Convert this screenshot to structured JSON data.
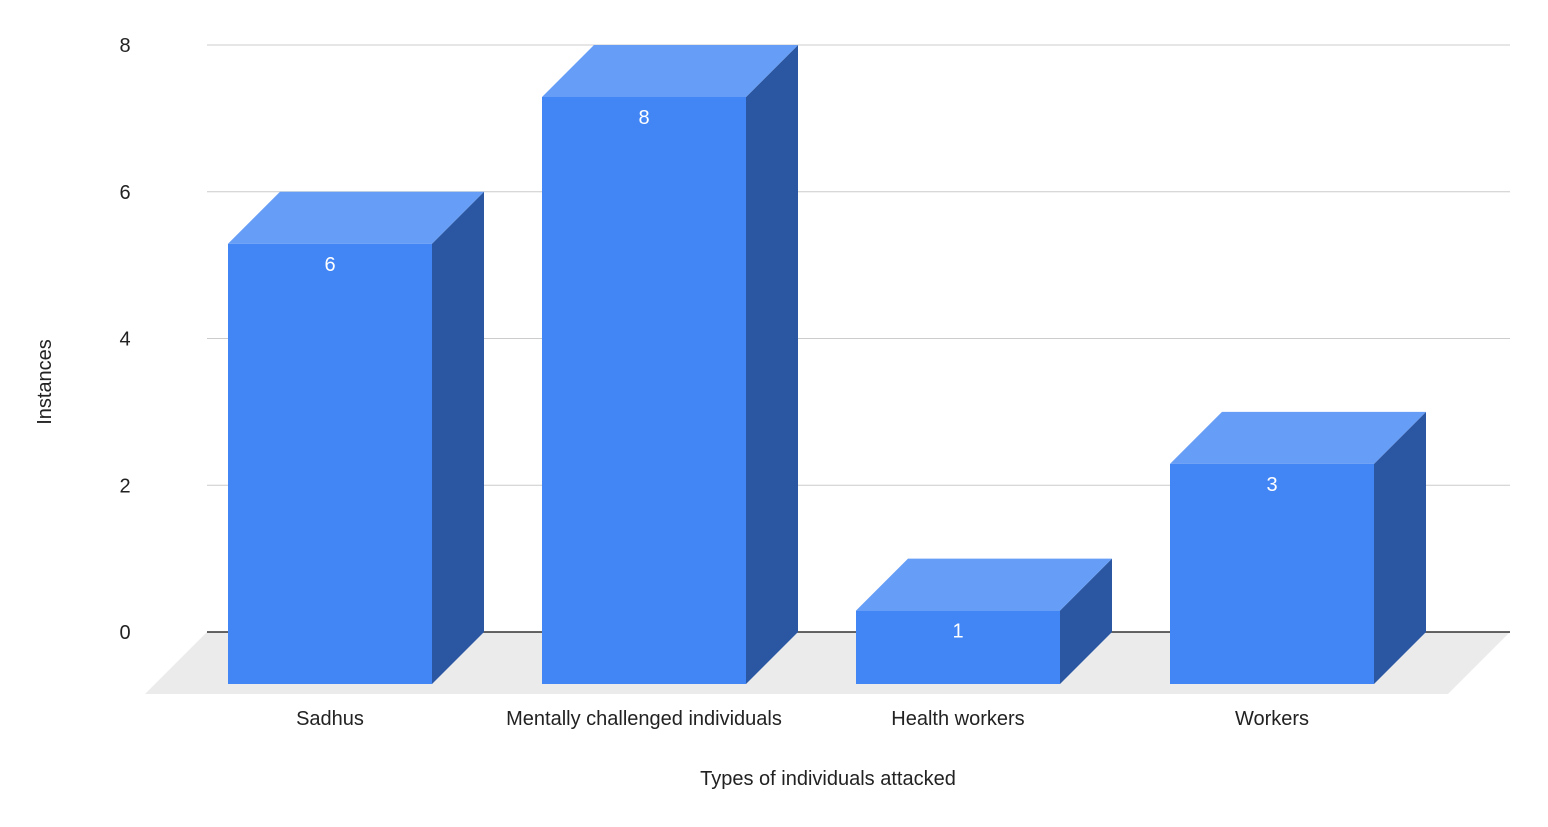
{
  "chart_data": {
    "type": "bar",
    "style": "3d",
    "categories": [
      "Sadhus",
      "Mentally challenged individuals",
      "Health workers",
      "Workers"
    ],
    "values": [
      6,
      8,
      1,
      3
    ],
    "xlabel": "Types of individuals attacked",
    "ylabel": "Instances",
    "ylim": [
      0,
      8
    ],
    "yticks": [
      0,
      2,
      4,
      6,
      8
    ],
    "grid": true,
    "legend": "none",
    "colors": {
      "front": "#4285f4",
      "top": "#669df6",
      "side": "#2b56a1",
      "floor": "#ebebeb",
      "grid": "#cccccc",
      "baseline": "#333333"
    }
  }
}
